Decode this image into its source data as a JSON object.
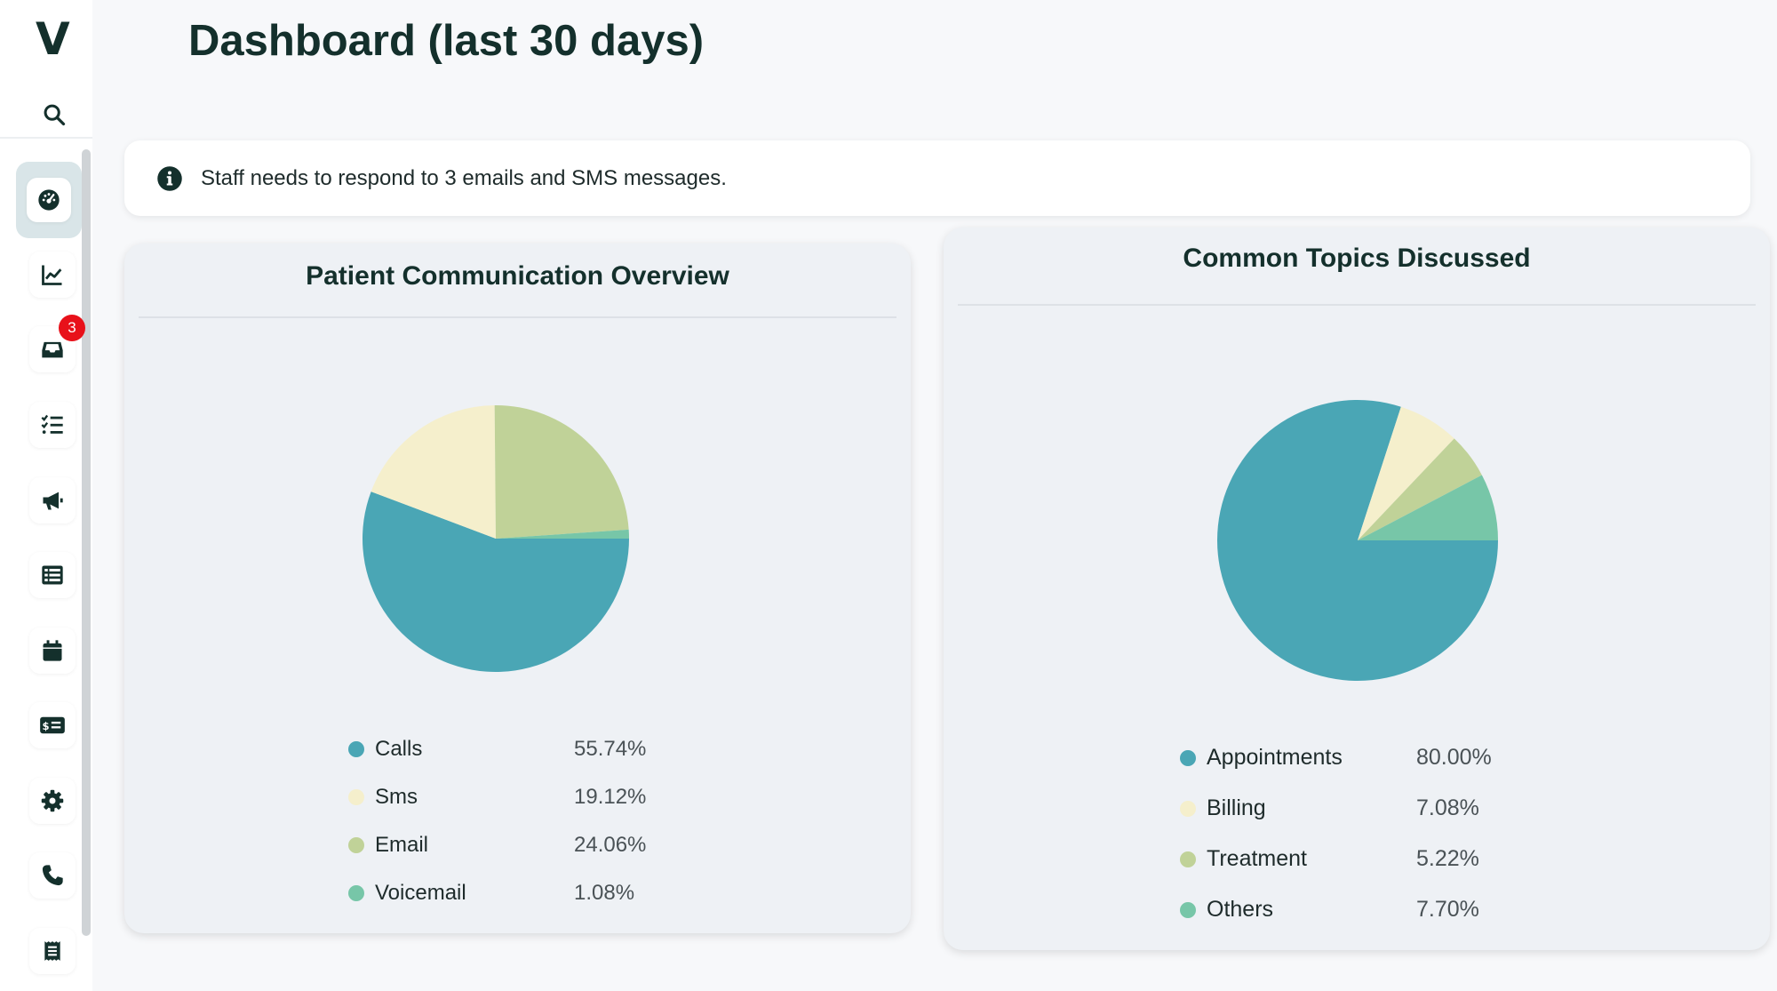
{
  "app": {
    "logo_text": "V"
  },
  "header": {
    "title": "Dashboard (last 30 days)"
  },
  "sidebar": {
    "items": [
      {
        "name": "dashboard",
        "icon": "gauge-icon",
        "active": true
      },
      {
        "name": "analytics",
        "icon": "line-chart-icon"
      },
      {
        "name": "inbox",
        "icon": "inbox-icon",
        "badge": "3"
      },
      {
        "name": "tasks",
        "icon": "checklist-icon"
      },
      {
        "name": "campaigns",
        "icon": "megaphone-icon"
      },
      {
        "name": "lists",
        "icon": "table-list-icon"
      },
      {
        "name": "calendar",
        "icon": "calendar-icon"
      },
      {
        "name": "billing",
        "icon": "money-card-icon"
      },
      {
        "name": "settings",
        "icon": "gear-icon"
      },
      {
        "name": "calls",
        "icon": "phone-icon"
      },
      {
        "name": "receipts",
        "icon": "receipt-icon"
      }
    ]
  },
  "alert": {
    "text": "Staff needs to respond to 3 emails and SMS messages."
  },
  "colors": {
    "teal": "#4aa6b5",
    "cream": "#f5efcc",
    "sage": "#c0d298",
    "mint": "#77c6a8"
  },
  "chart_data": [
    {
      "type": "pie",
      "title": "Patient Communication Overview",
      "labels": [
        "Calls",
        "Sms",
        "Email",
        "Voicemail"
      ],
      "values": [
        55.74,
        19.12,
        24.06,
        1.08
      ],
      "value_labels": [
        "55.74%",
        "19.12%",
        "24.06%",
        "1.08%"
      ],
      "colors": [
        "#4aa6b5",
        "#f5efcc",
        "#c0d298",
        "#77c6a8"
      ],
      "legend_position": "bottom"
    },
    {
      "type": "pie",
      "title": "Common Topics Discussed",
      "labels": [
        "Appointments",
        "Billing",
        "Treatment",
        "Others"
      ],
      "values": [
        80.0,
        7.08,
        5.22,
        7.7
      ],
      "value_labels": [
        "80.00%",
        "7.08%",
        "5.22%",
        "7.70%"
      ],
      "colors": [
        "#4aa6b5",
        "#f5efcc",
        "#c0d298",
        "#77c6a8"
      ],
      "legend_position": "bottom"
    }
  ]
}
